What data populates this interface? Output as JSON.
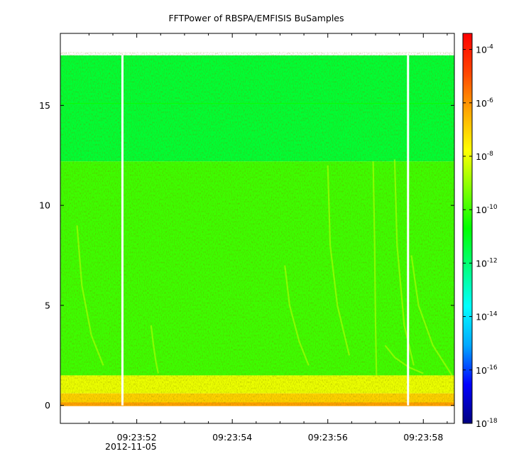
{
  "chart_data": {
    "type": "heatmap",
    "title": "FFTPower of RBSPA/EMFISIS  BuSamples",
    "xlabel": "",
    "ylabel": "",
    "x_ticks": [
      {
        "label": "09:23:52",
        "t": 52
      },
      {
        "label": "09:23:54",
        "t": 54
      },
      {
        "label": "09:23:56",
        "t": 56
      },
      {
        "label": "09:23:58",
        "t": 58
      }
    ],
    "x_minor_ticks": [
      51,
      51.5,
      52.5,
      53,
      53.5,
      54.5,
      55,
      55.5,
      56.5,
      57,
      57.5,
      58.5
    ],
    "x_range_seconds": [
      50.4,
      58.65
    ],
    "date_label": "2012-11-05",
    "y_ticks": [
      0,
      5,
      10,
      15
    ],
    "y_range": [
      -0.9,
      18.6
    ],
    "data_y_range": [
      0,
      17.5
    ],
    "data_gaps_seconds": [
      51.7,
      57.68
    ],
    "colorbar": {
      "scale": "log",
      "range_exponent": [
        -18,
        -3.4
      ],
      "ticks": [
        {
          "base": "10",
          "exp": "-4",
          "value": 0.0001
        },
        {
          "base": "10",
          "exp": "-6",
          "value": 1e-06
        },
        {
          "base": "10",
          "exp": "-8",
          "value": 1e-08
        },
        {
          "base": "10",
          "exp": "-10",
          "value": 1e-10
        },
        {
          "base": "10",
          "exp": "-12",
          "value": 1e-12
        },
        {
          "base": "10",
          "exp": "-14",
          "value": 1e-14
        },
        {
          "base": "10",
          "exp": "-16",
          "value": 1e-16
        },
        {
          "base": "10",
          "exp": "-18",
          "value": 1e-18
        }
      ],
      "colormap": [
        "#00007f",
        "#0000ff",
        "#00a8ff",
        "#00ffff",
        "#00ff7f",
        "#00ff00",
        "#7fff00",
        "#ffff00",
        "#ffa800",
        "#ff4400",
        "#ff0000"
      ]
    },
    "bands": [
      {
        "y_from": 12.2,
        "y_to": 17.5,
        "level_exponent": -11.3
      },
      {
        "y_from": 1.5,
        "y_to": 12.2,
        "level_exponent": -10.0
      },
      {
        "y_from": 0.6,
        "y_to": 1.5,
        "level_exponent": -8.0
      },
      {
        "y_from": 0.0,
        "y_to": 0.6,
        "level_exponent": -7.0
      }
    ],
    "grid": false,
    "legend": "colorbar-right"
  }
}
